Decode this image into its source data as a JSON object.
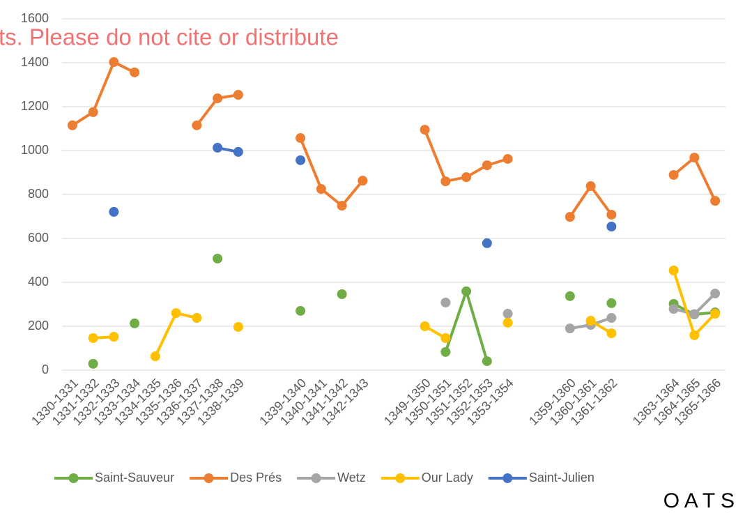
{
  "chart_data": {
    "type": "line",
    "annotations": [
      "ts. Please do not cite or distribute",
      "O A T S"
    ],
    "categories": [
      "1330-1331",
      "1331-1332",
      "1332-1333",
      "1333-1334",
      "1334-1335",
      "1335-1336",
      "1336-1337",
      "1337-1338",
      "1338-1339",
      null,
      null,
      "1339-1340",
      "1340-1341",
      "1341-1342",
      "1342-1343",
      null,
      null,
      "1349-1350",
      "1350-1351",
      "1351-1352",
      "1352-1353",
      "1353-1354",
      null,
      null,
      "1359-1360",
      "1360-1361",
      "1361-1362",
      null,
      null,
      "1363-1364",
      "1364-1365",
      "1365-1366"
    ],
    "series": [
      {
        "name": "Saint-Sauveur",
        "color": "#70ad47",
        "values": [
          null,
          29,
          null,
          213,
          null,
          null,
          null,
          508,
          null,
          null,
          null,
          270,
          null,
          346,
          null,
          null,
          null,
          null,
          83,
          359,
          41,
          null,
          null,
          null,
          337,
          null,
          305,
          null,
          null,
          302,
          254,
          263
        ]
      },
      {
        "name": "Des Prés",
        "color": "#ed7d31",
        "values": [
          1115,
          1175,
          1403,
          1356,
          null,
          null,
          1115,
          1238,
          1254,
          null,
          null,
          1057,
          825,
          749,
          863,
          null,
          null,
          1095,
          860,
          879,
          933,
          962,
          null,
          null,
          698,
          838,
          708,
          null,
          null,
          889,
          968,
          771
        ]
      },
      {
        "name": "Wetz",
        "color": "#a5a5a5",
        "values": [
          null,
          null,
          null,
          null,
          null,
          null,
          null,
          null,
          null,
          null,
          null,
          null,
          null,
          null,
          null,
          null,
          null,
          null,
          308,
          null,
          null,
          257,
          null,
          null,
          190,
          206,
          238,
          null,
          null,
          279,
          255,
          349
        ]
      },
      {
        "name": "Our Lady",
        "color": "#ffc000",
        "values": [
          null,
          146,
          152,
          null,
          63,
          260,
          238,
          null,
          197,
          null,
          null,
          null,
          null,
          null,
          null,
          null,
          null,
          200,
          146,
          null,
          null,
          216,
          null,
          null,
          null,
          225,
          168,
          null,
          null,
          454,
          159,
          257
        ]
      },
      {
        "name": "Saint-Julien",
        "color": "#4472c4",
        "values": [
          null,
          null,
          721,
          null,
          null,
          null,
          null,
          1013,
          994,
          null,
          null,
          956,
          null,
          null,
          null,
          null,
          null,
          null,
          null,
          null,
          578,
          null,
          null,
          null,
          null,
          null,
          654,
          null,
          null,
          null,
          null,
          null
        ]
      }
    ],
    "ylim": [
      0,
      1600
    ],
    "yticks": [
      0,
      200,
      400,
      600,
      800,
      1000,
      1200,
      1400,
      1600
    ],
    "grid": true,
    "legend": "bottom"
  }
}
